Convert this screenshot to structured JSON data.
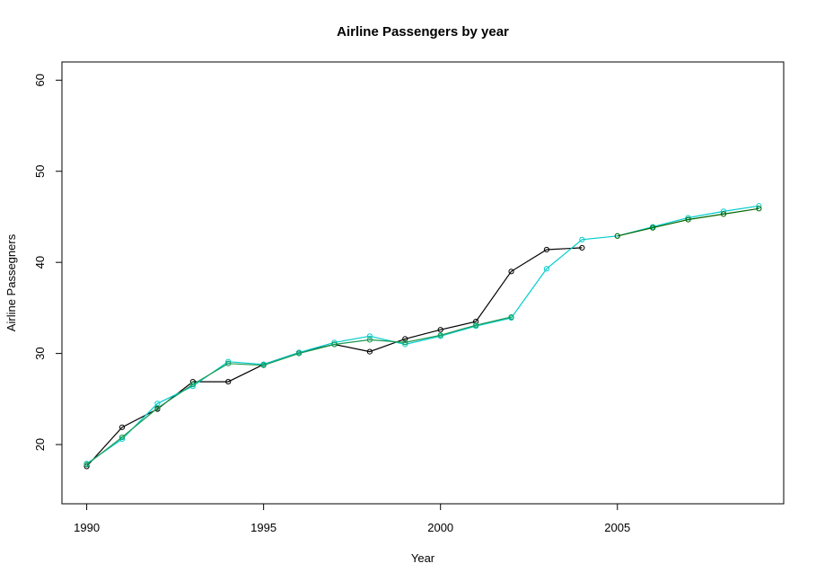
{
  "chart_data": {
    "type": "line",
    "title": "Airline Passengers by year",
    "xlabel": "Year",
    "ylabel": "Airline Passegners",
    "xlim": [
      1989.3,
      2009.7
    ],
    "ylim": [
      13.5,
      62
    ],
    "x_ticks": [
      "1990",
      "1995",
      "2000",
      "2005"
    ],
    "y_ticks": [
      "20",
      "30",
      "40",
      "50",
      "60"
    ],
    "grid": false,
    "legend": "none",
    "series": [
      {
        "color": "#000000",
        "marker": "circle-open",
        "points": [
          [
            1990,
            17.6
          ],
          [
            1991,
            21.9
          ],
          [
            1992,
            23.9
          ],
          [
            1993,
            26.9
          ],
          [
            1994,
            26.9
          ],
          [
            1995,
            28.8
          ],
          [
            1996,
            30.1
          ],
          [
            1997,
            31.0
          ],
          [
            1998,
            30.2
          ],
          [
            1999,
            31.6
          ],
          [
            2000,
            32.6
          ],
          [
            2001,
            33.5
          ],
          [
            2002,
            39.0
          ],
          [
            2003,
            41.4
          ],
          [
            2004,
            41.6
          ]
        ]
      },
      {
        "color": "#00cccc",
        "marker": "circle-open",
        "points": [
          [
            1990,
            17.9
          ],
          [
            1991,
            20.6
          ],
          [
            1992,
            24.5
          ],
          [
            1993,
            26.4
          ],
          [
            1994,
            29.1
          ],
          [
            1995,
            28.8
          ],
          [
            1996,
            30.1
          ],
          [
            1997,
            31.2
          ],
          [
            1998,
            31.9
          ],
          [
            1999,
            31.0
          ],
          [
            2000,
            31.9
          ],
          [
            2001,
            33.0
          ],
          [
            2002,
            33.9
          ],
          [
            2003,
            39.3
          ],
          [
            2004,
            42.5
          ],
          [
            2005,
            42.9
          ],
          [
            2006,
            43.9
          ],
          [
            2007,
            44.9
          ],
          [
            2008,
            45.6
          ],
          [
            2009,
            46.2
          ]
        ]
      },
      {
        "color": "#1a9850",
        "marker": "circle-open",
        "points": [
          [
            1990,
            17.8
          ],
          [
            1991,
            20.8
          ],
          [
            1992,
            24.0
          ],
          [
            1993,
            26.6
          ],
          [
            1994,
            28.9
          ],
          [
            1995,
            28.7
          ],
          [
            1996,
            30.0
          ],
          [
            1997,
            31.0
          ],
          [
            1998,
            31.5
          ],
          [
            1999,
            31.2
          ],
          [
            2000,
            32.0
          ],
          [
            2001,
            33.1
          ],
          [
            2002,
            34.0
          ]
        ]
      },
      {
        "color": "#006400",
        "marker": "circle-open",
        "points": [
          [
            2005,
            42.9
          ],
          [
            2006,
            43.8
          ],
          [
            2007,
            44.7
          ],
          [
            2008,
            45.3
          ],
          [
            2009,
            45.9
          ]
        ]
      }
    ]
  }
}
